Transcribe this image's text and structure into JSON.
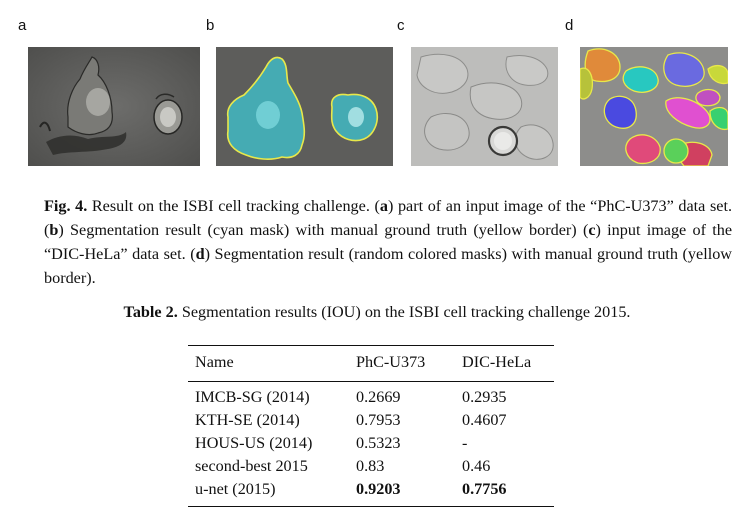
{
  "figure": {
    "panels": [
      {
        "letter": "a",
        "icon": "phc-u373-input-image"
      },
      {
        "letter": "b",
        "icon": "phc-u373-segmentation-image"
      },
      {
        "letter": "c",
        "icon": "dic-hela-input-image"
      },
      {
        "letter": "d",
        "icon": "dic-hela-segmentation-image"
      }
    ],
    "caption": {
      "label": "Fig. 4.",
      "t1": " Result on the ISBI cell tracking challenge. (",
      "a": "a",
      "t2": ") part of an input image of the “PhC-U373” data set. (",
      "b": "b",
      "t3": ") Segmentation result (cyan mask) with manual ground truth (yellow border) (",
      "c": "c",
      "t4": ") input image of the “DIC-HeLa” data set. (",
      "d": "d",
      "t5": ") Segmentation result (random colored masks) with manual ground truth (yellow border)."
    },
    "colors": {
      "cyan_mask": "#3ec5d0",
      "yellow_border": "#e8e84a"
    }
  },
  "table": {
    "label": "Table 2.",
    "title": " Segmentation results (IOU) on the ISBI cell tracking challenge 2015.",
    "headers": [
      "Name",
      "PhC-U373",
      "DIC-HeLa"
    ],
    "rows": [
      [
        "IMCB-SG (2014)",
        "0.2669",
        "0.2935"
      ],
      [
        "KTH-SE (2014)",
        "0.7953",
        "0.4607"
      ],
      [
        "HOUS-US (2014)",
        "0.5323",
        "-"
      ],
      [
        "second-best 2015",
        "0.83",
        "0.46"
      ],
      [
        "u-net (2015)",
        "0.9203",
        "0.7756"
      ]
    ]
  }
}
